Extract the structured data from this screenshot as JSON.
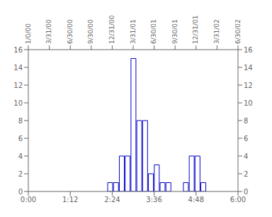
{
  "chart_data": {
    "type": "bar",
    "x": [
      2.333,
      2.5,
      2.667,
      2.833,
      3.0,
      3.167,
      3.333,
      3.5,
      3.667,
      3.833,
      4.0,
      4.5,
      4.667,
      4.833,
      5.0
    ],
    "values": [
      1,
      1,
      4,
      4,
      15,
      8,
      8,
      2,
      3,
      1,
      1,
      1,
      4,
      4,
      1
    ],
    "color": "#0000cc",
    "xlim": [
      0,
      6
    ],
    "xticks": [
      {
        "value": 0,
        "label": "0:00"
      },
      {
        "value": 1.2,
        "label": "1:12"
      },
      {
        "value": 2.4,
        "label": "2:24"
      },
      {
        "value": 3.6,
        "label": "3:36"
      },
      {
        "value": 4.8,
        "label": "4:48"
      },
      {
        "value": 6.0,
        "label": "6:00"
      }
    ],
    "x2lim": [
      0,
      6
    ],
    "x2ticks": [
      {
        "value": 0.0,
        "label": "1/0/00"
      },
      {
        "value": 0.6,
        "label": "3/31/00"
      },
      {
        "value": 1.2,
        "label": "6/30/00"
      },
      {
        "value": 1.8,
        "label": "9/30/00"
      },
      {
        "value": 2.4,
        "label": "12/31/00"
      },
      {
        "value": 3.0,
        "label": "3/31/01"
      },
      {
        "value": 3.6,
        "label": "6/30/01"
      },
      {
        "value": 4.2,
        "label": "9/30/01"
      },
      {
        "value": 4.8,
        "label": "12/31/01"
      },
      {
        "value": 5.4,
        "label": "3/31/02"
      },
      {
        "value": 6.0,
        "label": "6/30/02"
      }
    ],
    "ylim": [
      0,
      16
    ],
    "yticks": [
      0,
      2,
      4,
      6,
      8,
      10,
      12,
      14,
      16
    ],
    "y2lim": [
      0,
      16
    ],
    "y2ticks": [
      0,
      2,
      4,
      6,
      8,
      10,
      12,
      14,
      16
    ],
    "grid": false
  }
}
